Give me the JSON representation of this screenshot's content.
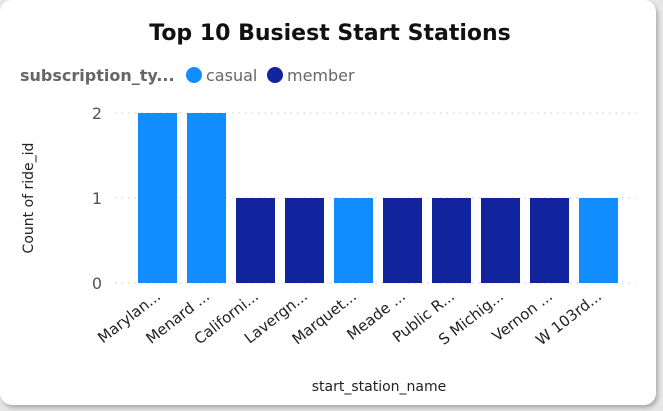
{
  "chart_data": {
    "type": "bar",
    "title": "Top 10 Busiest Start Stations",
    "legend": {
      "title": "subscription_ty...",
      "placement": "top-left",
      "items": [
        {
          "label": "casual",
          "color": "#118dff"
        },
        {
          "label": "member",
          "color": "#12239e"
        }
      ]
    },
    "xlabel": "start_station_name",
    "ylabel": "Count of ride_id",
    "ylim": [
      0,
      2
    ],
    "yticks": [
      "0",
      "1",
      "2"
    ],
    "grid": "horizontal-dotted",
    "categories": [
      "Marylan...",
      "Menard ...",
      "Californi...",
      "Lavergn...",
      "Marquet...",
      "Meade ...",
      "Public R...",
      "S Michig...",
      "Vernon ...",
      "W 103rd..."
    ],
    "values": [
      2,
      2,
      1,
      1,
      1,
      1,
      1,
      1,
      1,
      1
    ],
    "series_by_bar": [
      "casual",
      "casual",
      "member",
      "member",
      "casual",
      "member",
      "member",
      "member",
      "member",
      "casual"
    ],
    "colors": {
      "casual": "#118dff",
      "member": "#12239e"
    }
  }
}
